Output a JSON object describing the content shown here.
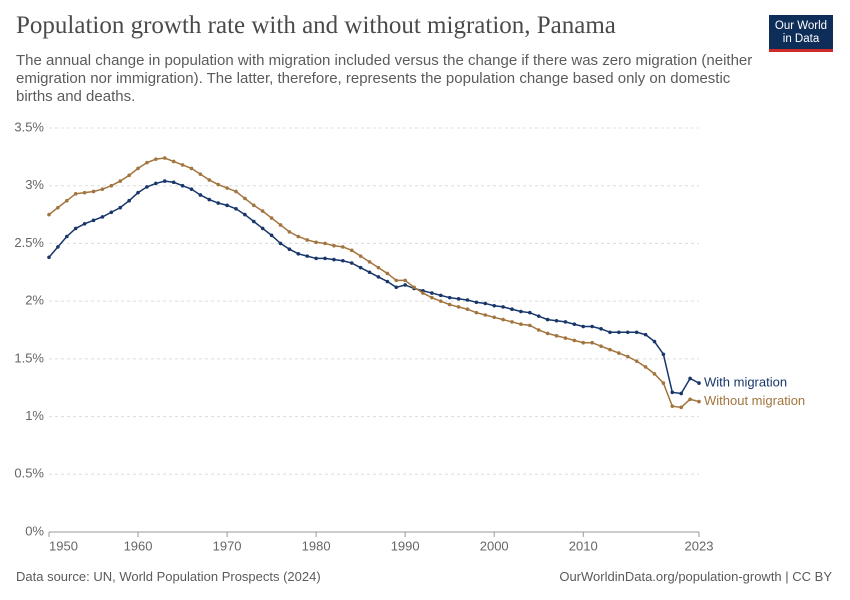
{
  "chart_data": {
    "type": "line",
    "title": "Population growth rate with and without migration, Panama",
    "subtitle": "The annual change in population with migration included versus the change if there was zero migration (neither emigration nor immigration). The latter, therefore, represents the population change based only on domestic births and deaths.",
    "logo": {
      "line1": "Our World",
      "line2": "in Data"
    },
    "source": "Data source: UN, World Population Prospects (2024)",
    "credit": "OurWorldinData.org/population-growth | CC BY",
    "x": [
      1950,
      1951,
      1952,
      1953,
      1954,
      1955,
      1956,
      1957,
      1958,
      1959,
      1960,
      1961,
      1962,
      1963,
      1964,
      1965,
      1966,
      1967,
      1968,
      1969,
      1970,
      1971,
      1972,
      1973,
      1974,
      1975,
      1976,
      1977,
      1978,
      1979,
      1980,
      1981,
      1982,
      1983,
      1984,
      1985,
      1986,
      1987,
      1988,
      1989,
      1990,
      1991,
      1992,
      1993,
      1994,
      1995,
      1996,
      1997,
      1998,
      1999,
      2000,
      2001,
      2002,
      2003,
      2004,
      2005,
      2006,
      2007,
      2008,
      2009,
      2010,
      2011,
      2012,
      2013,
      2014,
      2015,
      2016,
      2017,
      2018,
      2019,
      2020,
      2021,
      2022,
      2023
    ],
    "series": [
      {
        "name": "With migration",
        "color": "#18366a",
        "values": [
          2.38,
          2.47,
          2.56,
          2.63,
          2.67,
          2.7,
          2.73,
          2.77,
          2.81,
          2.87,
          2.94,
          2.99,
          3.02,
          3.04,
          3.03,
          3.0,
          2.97,
          2.92,
          2.88,
          2.85,
          2.83,
          2.8,
          2.75,
          2.69,
          2.63,
          2.57,
          2.5,
          2.45,
          2.41,
          2.39,
          2.37,
          2.37,
          2.36,
          2.35,
          2.33,
          2.29,
          2.25,
          2.21,
          2.17,
          2.12,
          2.14,
          2.11,
          2.09,
          2.07,
          2.05,
          2.03,
          2.02,
          2.01,
          1.99,
          1.98,
          1.96,
          1.95,
          1.93,
          1.91,
          1.9,
          1.87,
          1.84,
          1.83,
          1.82,
          1.8,
          1.78,
          1.78,
          1.76,
          1.73,
          1.73,
          1.73,
          1.73,
          1.71,
          1.65,
          1.54,
          1.21,
          1.2,
          1.33,
          1.29
        ]
      },
      {
        "name": "Without migration",
        "color": "#a2743e",
        "values": [
          2.75,
          2.81,
          2.87,
          2.93,
          2.94,
          2.95,
          2.97,
          3.0,
          3.04,
          3.09,
          3.15,
          3.2,
          3.23,
          3.24,
          3.21,
          3.18,
          3.15,
          3.1,
          3.05,
          3.01,
          2.98,
          2.95,
          2.89,
          2.83,
          2.78,
          2.72,
          2.66,
          2.6,
          2.56,
          2.53,
          2.51,
          2.5,
          2.48,
          2.47,
          2.44,
          2.39,
          2.34,
          2.29,
          2.24,
          2.18,
          2.18,
          2.12,
          2.07,
          2.03,
          2.0,
          1.97,
          1.95,
          1.93,
          1.9,
          1.88,
          1.86,
          1.84,
          1.82,
          1.8,
          1.79,
          1.75,
          1.72,
          1.7,
          1.68,
          1.66,
          1.64,
          1.64,
          1.61,
          1.58,
          1.55,
          1.52,
          1.48,
          1.43,
          1.37,
          1.29,
          1.09,
          1.08,
          1.15,
          1.13
        ]
      }
    ],
    "xlim": [
      1950,
      2023
    ],
    "xticks": [
      1950,
      1960,
      1970,
      1980,
      1990,
      2000,
      2010,
      2023
    ],
    "ylim": [
      0,
      3.5
    ],
    "yticks": [
      {
        "value": 0,
        "label": "0%"
      },
      {
        "value": 0.5,
        "label": "0.5%"
      },
      {
        "value": 1,
        "label": "1%"
      },
      {
        "value": 1.5,
        "label": "1.5%"
      },
      {
        "value": 2,
        "label": "2%"
      },
      {
        "value": 2.5,
        "label": "2.5%"
      },
      {
        "value": 3,
        "label": "3%"
      },
      {
        "value": 3.5,
        "label": "3.5%"
      }
    ],
    "grid": true
  }
}
